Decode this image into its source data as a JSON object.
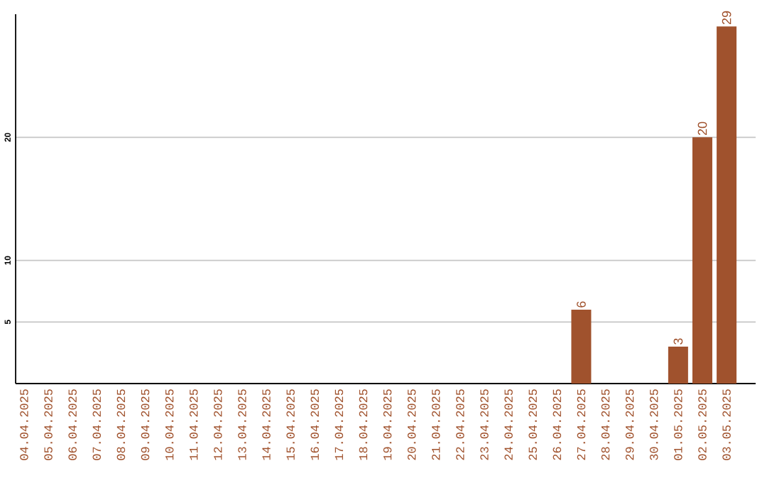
{
  "chart_data": {
    "type": "bar",
    "categories": [
      "04.04.2025",
      "05.04.2025",
      "06.04.2025",
      "07.04.2025",
      "08.04.2025",
      "09.04.2025",
      "10.04.2025",
      "11.04.2025",
      "12.04.2025",
      "13.04.2025",
      "14.04.2025",
      "15.04.2025",
      "16.04.2025",
      "17.04.2025",
      "18.04.2025",
      "19.04.2025",
      "20.04.2025",
      "21.04.2025",
      "22.04.2025",
      "23.04.2025",
      "24.04.2025",
      "25.04.2025",
      "26.04.2025",
      "27.04.2025",
      "28.04.2025",
      "29.04.2025",
      "30.04.2025",
      "01.05.2025",
      "02.05.2025",
      "03.05.2025"
    ],
    "values": [
      0,
      0,
      0,
      0,
      0,
      0,
      0,
      0,
      0,
      0,
      0,
      0,
      0,
      0,
      0,
      0,
      0,
      0,
      0,
      0,
      0,
      0,
      0,
      6,
      0,
      0,
      0,
      3,
      20,
      29
    ],
    "value_labels": [
      null,
      null,
      null,
      null,
      null,
      null,
      null,
      null,
      null,
      null,
      null,
      null,
      null,
      null,
      null,
      null,
      null,
      null,
      null,
      null,
      null,
      null,
      null,
      "6",
      null,
      null,
      null,
      "3",
      "20",
      "29"
    ],
    "color": "#a0522d",
    "ylim": [
      0,
      30
    ],
    "yticks": [
      5,
      10,
      20
    ],
    "grid": "y"
  }
}
